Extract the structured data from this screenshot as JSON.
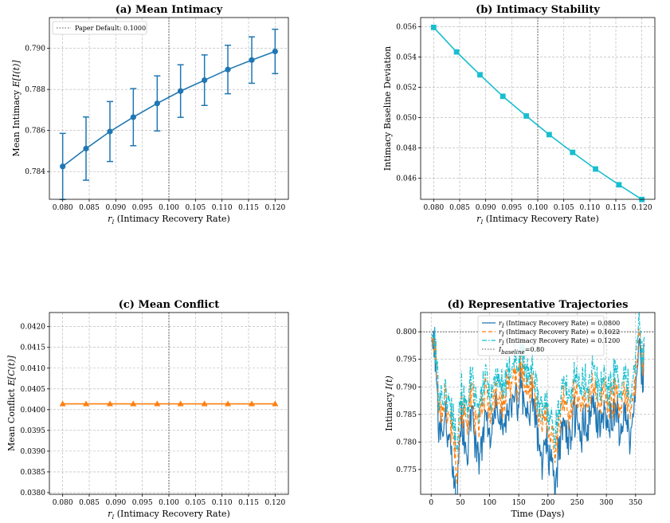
{
  "chart_data": [
    {
      "id": "a",
      "type": "line",
      "title": "(a) Mean Intimacy",
      "xlabel": "r_I (Intimacy Recovery Rate)",
      "ylabel": "Mean Intimacy E[I(t)]",
      "xlim": [
        0.0775,
        0.1225
      ],
      "ylim": [
        0.78265,
        0.7915
      ],
      "xticks": [
        0.08,
        0.085,
        0.09,
        0.095,
        0.1,
        0.105,
        0.11,
        0.115,
        0.12
      ],
      "xtick_labels": [
        "0.080",
        "0.085",
        "0.090",
        "0.095",
        "0.100",
        "0.105",
        "0.110",
        "0.115",
        "0.120"
      ],
      "yticks": [
        0.784,
        0.786,
        0.788,
        0.79
      ],
      "ytick_labels": [
        "0.784",
        "0.786",
        "0.788",
        "0.790"
      ],
      "vline": 0.1,
      "legend": {
        "label": "Paper Default: 0.1000",
        "position": "top-left"
      },
      "color": "#1f77b4",
      "marker": "circle",
      "series": [
        {
          "name": "Mean Intimacy",
          "x": [
            0.08,
            0.0844,
            0.0889,
            0.0933,
            0.0978,
            0.1022,
            0.1067,
            0.1111,
            0.1156,
            0.12
          ],
          "y": [
            0.78425,
            0.78512,
            0.78595,
            0.78665,
            0.78732,
            0.78792,
            0.78845,
            0.78897,
            0.78943,
            0.78985
          ],
          "err": [
            0.00161,
            0.00154,
            0.00146,
            0.00139,
            0.00134,
            0.00128,
            0.00123,
            0.00118,
            0.00113,
            0.00108
          ]
        }
      ]
    },
    {
      "id": "b",
      "type": "line",
      "title": "(b) Intimacy Stability",
      "xlabel": "r_I (Intimacy Recovery Rate)",
      "ylabel": "Intimacy Baseline Deviation",
      "xlim": [
        0.0775,
        0.1225
      ],
      "ylim": [
        0.0446,
        0.0566
      ],
      "xticks": [
        0.08,
        0.085,
        0.09,
        0.095,
        0.1,
        0.105,
        0.11,
        0.115,
        0.12
      ],
      "xtick_labels": [
        "0.080",
        "0.085",
        "0.090",
        "0.095",
        "0.100",
        "0.105",
        "0.110",
        "0.115",
        "0.120"
      ],
      "yticks": [
        0.046,
        0.048,
        0.05,
        0.052,
        0.054,
        0.056
      ],
      "ytick_labels": [
        "0.046",
        "0.048",
        "0.050",
        "0.052",
        "0.054",
        "0.056"
      ],
      "vline": 0.1,
      "color": "#17becf",
      "marker": "square",
      "series": [
        {
          "name": "Baseline Deviation",
          "x": [
            0.08,
            0.0844,
            0.0889,
            0.0933,
            0.0978,
            0.1022,
            0.1067,
            0.1111,
            0.1156,
            0.12
          ],
          "y": [
            0.05595,
            0.05433,
            0.05282,
            0.0514,
            0.0501,
            0.04887,
            0.0477,
            0.0466,
            0.04556,
            0.04459
          ]
        }
      ]
    },
    {
      "id": "c",
      "type": "line",
      "title": "(c) Mean Conflict",
      "xlabel": "r_I (Intimacy Recovery Rate)",
      "ylabel": "Mean Conflict E[C(t)]",
      "xlim": [
        0.0775,
        0.1225
      ],
      "ylim": [
        0.03796,
        0.04234
      ],
      "xticks": [
        0.08,
        0.085,
        0.09,
        0.095,
        0.1,
        0.105,
        0.11,
        0.115,
        0.12
      ],
      "xtick_labels": [
        "0.080",
        "0.085",
        "0.090",
        "0.095",
        "0.100",
        "0.105",
        "0.110",
        "0.115",
        "0.120"
      ],
      "yticks": [
        0.038,
        0.0385,
        0.039,
        0.0395,
        0.04,
        0.0405,
        0.041,
        0.0415,
        0.042
      ],
      "ytick_labels": [
        "0.0380",
        "0.0385",
        "0.0390",
        "0.0395",
        "0.0400",
        "0.0405",
        "0.0410",
        "0.0415",
        "0.0420"
      ],
      "vline": 0.1,
      "color": "#ff7f0e",
      "marker": "triangle",
      "series": [
        {
          "name": "Mean Conflict",
          "x": [
            0.08,
            0.0844,
            0.0889,
            0.0933,
            0.0978,
            0.1022,
            0.1067,
            0.1111,
            0.1156,
            0.12
          ],
          "y": [
            0.04014,
            0.04014,
            0.04014,
            0.04014,
            0.04014,
            0.04014,
            0.04014,
            0.04014,
            0.04014,
            0.04014
          ]
        }
      ]
    },
    {
      "id": "d",
      "type": "line",
      "title": "(d) Representative Trajectories",
      "xlabel": "Time (Days)",
      "ylabel": "Intimacy I(t)",
      "xlim": [
        -18,
        383
      ],
      "ylim": [
        0.7705,
        0.8035
      ],
      "xticks": [
        0,
        50,
        100,
        150,
        200,
        250,
        300,
        350
      ],
      "xtick_labels": [
        "0",
        "50",
        "100",
        "150",
        "200",
        "250",
        "300",
        "350"
      ],
      "yticks": [
        0.775,
        0.78,
        0.785,
        0.79,
        0.795,
        0.8
      ],
      "ytick_labels": [
        "0.775",
        "0.780",
        "0.785",
        "0.790",
        "0.795",
        "0.800"
      ],
      "hline": 0.8,
      "legend_position": "top-center",
      "keyframes_x": [
        0,
        6,
        12,
        18,
        24,
        30,
        36,
        40,
        44,
        48,
        52,
        58,
        64,
        70,
        76,
        82,
        88,
        94,
        100,
        106,
        112,
        118,
        124,
        130,
        136,
        142,
        148,
        154,
        160,
        166,
        172,
        178,
        184,
        190,
        196,
        202,
        208,
        212,
        216,
        222,
        228,
        234,
        240,
        246,
        250,
        256,
        262,
        268,
        274,
        280,
        286,
        292,
        298,
        304,
        310,
        316,
        322,
        328,
        334,
        340,
        346,
        352,
        356,
        360,
        365
      ],
      "series": [
        {
          "name": "r_I (Intimacy Recovery Rate) = 0.0800",
          "legend_prefix": "r",
          "legend_sub": "I",
          "legend_rest": " (Intimacy Recovery Rate) = 0.0800",
          "color": "#1f77b4",
          "dash": "",
          "y": [
            0.7985,
            0.798,
            0.785,
            0.782,
            0.785,
            0.78,
            0.778,
            0.773,
            0.772,
            0.781,
            0.783,
            0.779,
            0.78,
            0.785,
            0.778,
            0.776,
            0.782,
            0.785,
            0.781,
            0.783,
            0.787,
            0.784,
            0.782,
            0.785,
            0.788,
            0.789,
            0.786,
            0.791,
            0.787,
            0.785,
            0.788,
            0.786,
            0.779,
            0.776,
            0.78,
            0.778,
            0.774,
            0.772,
            0.776,
            0.782,
            0.784,
            0.779,
            0.783,
            0.785,
            0.786,
            0.78,
            0.784,
            0.783,
            0.786,
            0.785,
            0.783,
            0.784,
            0.786,
            0.782,
            0.784,
            0.786,
            0.783,
            0.782,
            0.785,
            0.781,
            0.783,
            0.792,
            0.799,
            0.791,
            0.795
          ]
        },
        {
          "name": "r_I (Intimacy Recovery Rate) = 0.1022",
          "legend_prefix": "r",
          "legend_sub": "I",
          "legend_rest": " (Intimacy Recovery Rate) = 0.1022",
          "color": "#ff7f0e",
          "dash": "5 3",
          "y": [
            0.799,
            0.798,
            0.788,
            0.786,
            0.788,
            0.784,
            0.783,
            0.779,
            0.776,
            0.784,
            0.787,
            0.784,
            0.785,
            0.789,
            0.784,
            0.783,
            0.787,
            0.789,
            0.786,
            0.787,
            0.79,
            0.788,
            0.787,
            0.789,
            0.791,
            0.793,
            0.79,
            0.794,
            0.791,
            0.789,
            0.791,
            0.789,
            0.784,
            0.782,
            0.785,
            0.783,
            0.78,
            0.778,
            0.781,
            0.786,
            0.788,
            0.784,
            0.787,
            0.789,
            0.79,
            0.785,
            0.788,
            0.787,
            0.79,
            0.789,
            0.787,
            0.788,
            0.79,
            0.786,
            0.788,
            0.79,
            0.787,
            0.787,
            0.789,
            0.786,
            0.788,
            0.794,
            0.8,
            0.793,
            0.797
          ]
        },
        {
          "name": "r_I (Intimacy Recovery Rate) = 0.1200",
          "legend_prefix": "r",
          "legend_sub": "I",
          "legend_rest": " (Intimacy Recovery Rate) = 0.1200",
          "color": "#17becf",
          "dash": "6 2 1.5 2",
          "y": [
            0.7995,
            0.799,
            0.79,
            0.788,
            0.79,
            0.787,
            0.786,
            0.783,
            0.78,
            0.787,
            0.789,
            0.787,
            0.788,
            0.792,
            0.787,
            0.786,
            0.789,
            0.792,
            0.789,
            0.79,
            0.793,
            0.791,
            0.79,
            0.792,
            0.794,
            0.796,
            0.793,
            0.797,
            0.794,
            0.792,
            0.794,
            0.792,
            0.787,
            0.785,
            0.788,
            0.786,
            0.783,
            0.782,
            0.784,
            0.789,
            0.791,
            0.787,
            0.79,
            0.792,
            0.793,
            0.788,
            0.791,
            0.79,
            0.793,
            0.792,
            0.79,
            0.791,
            0.793,
            0.789,
            0.791,
            0.793,
            0.79,
            0.79,
            0.792,
            0.789,
            0.791,
            0.797,
            0.8025,
            0.795,
            0.799
          ]
        }
      ],
      "baseline_legend_prefix": "I",
      "baseline_legend_sub": "baseline",
      "baseline_legend_rest": "=0.80"
    }
  ]
}
